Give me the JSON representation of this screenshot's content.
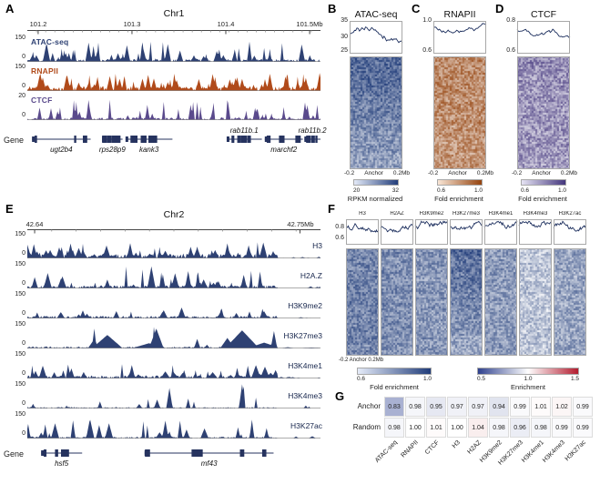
{
  "panelA": {
    "label": "A",
    "title": "Chr1",
    "xticks": [
      "101.2",
      "101.3",
      "101.4",
      "101.5Mb"
    ],
    "ruler": {
      "majors": [
        0.037,
        0.357,
        0.677,
        0.963
      ],
      "minors": 32
    },
    "gene_label": "Gene",
    "tracks": [
      {
        "name": "ATAC-seq",
        "ymax": "150",
        "ymin": "0",
        "color": "#2e4173",
        "seed": 11,
        "peaks": 80,
        "gain": 0.85,
        "noise": 0.12,
        "wide": 1
      },
      {
        "name": "RNAPII",
        "ymax": "150",
        "ymin": "0",
        "color": "#b04a1a",
        "seed": 12,
        "peaks": 100,
        "gain": 0.75,
        "noise": 0.2,
        "wide": 1
      },
      {
        "name": "CTCF",
        "ymax": "20",
        "ymin": "0",
        "color": "#5a4a8c",
        "seed": 13,
        "peaks": 60,
        "gain": 0.85,
        "noise": 0.1,
        "wide": 0
      }
    ],
    "genes": [
      {
        "name": "ugt2b4",
        "x": 0.016,
        "w": 0.2,
        "side": "below",
        "seed": 1
      },
      {
        "name": "rps28p9",
        "x": 0.255,
        "w": 0.07,
        "side": "below",
        "seed": 2
      },
      {
        "name": "kank3",
        "x": 0.335,
        "w": 0.16,
        "side": "below",
        "seed": 3
      },
      {
        "name": "rab11b.1",
        "x": 0.68,
        "w": 0.12,
        "side": "above",
        "seed": 4
      },
      {
        "name": "marchf2",
        "x": 0.81,
        "w": 0.13,
        "side": "below",
        "seed": 5
      },
      {
        "name": "rab11b.2",
        "x": 0.945,
        "w": 0.055,
        "side": "above",
        "seed": 6
      }
    ]
  },
  "panelB": {
    "label": "B",
    "title": "ATAC-seq",
    "yticks": [
      "35",
      "30",
      "25"
    ],
    "xlabels": [
      "-0.2",
      "Anchor",
      "0.2Mb"
    ],
    "meta": {
      "seed": 41,
      "start": 0.55,
      "step": 0.18,
      "lo": 0.25,
      "hi": 0.9,
      "color": "#1d2f5e"
    },
    "heat": {
      "seed": 52,
      "meanTop": 0.8,
      "meanBottom": 0.45,
      "var": 0.45,
      "color": "#1e3a78"
    },
    "colorbar": {
      "label": "RPKM normalized",
      "ticks": [
        "20",
        "32"
      ],
      "stops": [
        "#e8eefb",
        "#1e3a78"
      ]
    }
  },
  "panelC": {
    "label": "C",
    "title": "RNAPII",
    "yticks": [
      "1.0",
      "0.6"
    ],
    "xlabels": [
      "-0.2",
      "Anchor",
      "0.2Mb"
    ],
    "meta": {
      "seed": 43,
      "start": 0.78,
      "step": 0.1,
      "lo": 0.55,
      "hi": 0.92,
      "color": "#1d2f5e"
    },
    "heat": {
      "seed": 53,
      "meanTop": 0.62,
      "meanBottom": 0.55,
      "var": 0.5,
      "color": "#93400a"
    },
    "colorbar": {
      "label": "Fold enrichment",
      "ticks": [
        "0.6",
        "1.0"
      ],
      "stops": [
        "#fbe9da",
        "#93400a"
      ]
    }
  },
  "panelD": {
    "label": "D",
    "title": "CTCF",
    "yticks": [
      "0.8",
      "0.6"
    ],
    "xlabels": [
      "-0.2",
      "Anchor",
      "0.2Mb"
    ],
    "meta": {
      "seed": 47,
      "start": 0.72,
      "step": 0.12,
      "lo": 0.5,
      "hi": 0.9,
      "color": "#1d2f5e"
    },
    "heat": {
      "seed": 54,
      "meanTop": 0.55,
      "meanBottom": 0.5,
      "var": 0.55,
      "color": "#41337b"
    },
    "colorbar": {
      "label": "Fold enrichment",
      "ticks": [
        "0.6",
        "1.0"
      ],
      "stops": [
        "#e9e7f6",
        "#41337b"
      ]
    }
  },
  "panelE": {
    "label": "E",
    "title": "Chr2",
    "xticks": [
      "42.64",
      "42.75Mb"
    ],
    "ruler": {
      "majors": [
        0.025,
        0.93
      ],
      "minors": 12
    },
    "gene_label": "Gene",
    "tracks": [
      {
        "name": "H3",
        "ymax": "150",
        "ymin": "0",
        "color": "#2e4173",
        "seed": 111,
        "peaks": 90,
        "gain": 0.65,
        "noise": 0.18,
        "wide": 2,
        "cut": 0.85
      },
      {
        "name": "H2A.Z",
        "ymax": "150",
        "ymin": "0",
        "color": "#2e4173",
        "seed": 112,
        "peaks": 50,
        "gain": 0.9,
        "noise": 0.12,
        "wide": 2,
        "cut": 0.85
      },
      {
        "name": "H3K9me2",
        "ymax": "150",
        "ymin": "0",
        "color": "#2e4173",
        "seed": 113,
        "peaks": 30,
        "gain": 0.45,
        "noise": 0.1,
        "wide": 2,
        "cut": 0.85
      },
      {
        "name": "H3K27me3",
        "ymax": "150",
        "ymin": "0",
        "color": "#2e4173",
        "seed": 114,
        "peaks": 16,
        "gain": 0.95,
        "noise": 0.08,
        "wide": 20,
        "cut": 0.85
      },
      {
        "name": "H3K4me1",
        "ymax": "150",
        "ymin": "0",
        "color": "#2e4173",
        "seed": 115,
        "peaks": 60,
        "gain": 0.6,
        "noise": 0.12,
        "wide": 3,
        "cut": 0.85
      },
      {
        "name": "H3K4me3",
        "ymax": "150",
        "ymin": "0",
        "color": "#2e4173",
        "seed": 116,
        "peaks": 14,
        "gain": 1.0,
        "noise": 0.06,
        "wide": 1,
        "cut": 0.85
      },
      {
        "name": "H3K27ac",
        "ymax": "150",
        "ymin": "0",
        "color": "#2e4173",
        "seed": 117,
        "peaks": 30,
        "gain": 0.8,
        "noise": 0.08,
        "wide": 2,
        "cut": 0.85
      }
    ],
    "genes": [
      {
        "name": "hsf5",
        "x": 0.047,
        "w": 0.14,
        "side": "below",
        "seed": 8
      },
      {
        "name": "mf43",
        "x": 0.4,
        "w": 0.44,
        "side": "below",
        "seed": 9
      }
    ]
  },
  "panelF": {
    "label": "F",
    "yticks": [
      "0.8",
      "0.6"
    ],
    "xlabel": "-0.2 Anchor 0.2Mb",
    "heat_color": "#1e3a78",
    "line_color": "#1d2f5e",
    "columns": [
      {
        "name": "H3",
        "seedM": 201,
        "seedH": 301,
        "mean": 0.62
      },
      {
        "name": "H2AZ",
        "seedM": 202,
        "seedH": 302,
        "mean": 0.58
      },
      {
        "name": "H3K9me2",
        "seedM": 203,
        "seedH": 303,
        "mean": 0.52
      },
      {
        "name": "H3K27me3",
        "seedM": 204,
        "seedH": 304,
        "meanTop": 0.78,
        "meanBottom": 0.42
      },
      {
        "name": "H3K4me1",
        "seedM": 205,
        "seedH": 305,
        "mean": 0.5
      },
      {
        "name": "H3K4me3",
        "seedM": 206,
        "seedH": 306,
        "mean": 0.3
      },
      {
        "name": "H3K27ac",
        "seedM": 207,
        "seedH": 307,
        "mean": 0.45
      }
    ],
    "colorbar1": {
      "label": "Fold enrichment",
      "ticks": [
        "0.6",
        "1.0"
      ],
      "stops": [
        "#e8eefb",
        "#1e3a78"
      ]
    },
    "colorbar2": {
      "label": "Enrichment",
      "ticks": [
        "0.5",
        "1.0",
        "1.5"
      ],
      "stops": [
        "#2c3e8c",
        "#ffffff",
        "#b2182b"
      ]
    }
  },
  "panelG": {
    "label": "G",
    "rows": [
      "Anchor",
      "Random"
    ],
    "columns": [
      "ATAC-seq",
      "RNAPII",
      "CTCF",
      "H3",
      "H2AZ",
      "H3K9me2",
      "H3K27me3",
      "H3K4me1",
      "H3K4me3",
      "H3K27ac"
    ],
    "values": [
      [
        "0.83",
        "0.98",
        "0.95",
        "0.97",
        "0.97",
        "0.94",
        "0.99",
        "1.01",
        "1.02",
        "0.99"
      ],
      [
        "0.98",
        "1.00",
        "1.01",
        "1.00",
        "1.04",
        "0.98",
        "0.96",
        "0.98",
        "0.99",
        "0.99"
      ]
    ]
  },
  "chart_data": [
    {
      "id": "A",
      "type": "area",
      "title": "Chr1",
      "x_axis": {
        "unit": "Mb",
        "ticks": [
          101.2,
          101.3,
          101.4,
          101.5
        ]
      },
      "tracks": [
        {
          "name": "ATAC-seq",
          "ylim": [
            0,
            150
          ]
        },
        {
          "name": "RNAPII",
          "ylim": [
            0,
            150
          ]
        },
        {
          "name": "CTCF",
          "ylim": [
            0,
            20
          ]
        }
      ],
      "genes": [
        "ugt2b4",
        "rps28p9",
        "kank3",
        "rab11b.1",
        "marchf2",
        "rab11b.2"
      ],
      "note": "genome-browser coverage tracks; dense unlabeled peak signal"
    },
    {
      "id": "B",
      "type": "line",
      "title": "ATAC-seq",
      "ylim": [
        25,
        35
      ],
      "yticks": [
        25,
        30,
        35
      ],
      "x_ticks": [
        "-0.2",
        "Anchor",
        "0.2Mb"
      ],
      "heatmap_colorbar": {
        "label": "RPKM normalized",
        "range": [
          20,
          32
        ]
      }
    },
    {
      "id": "C",
      "type": "line",
      "title": "RNAPII",
      "ylim": [
        0.6,
        1.0
      ],
      "x_ticks": [
        "-0.2",
        "Anchor",
        "0.2Mb"
      ],
      "heatmap_colorbar": {
        "label": "Fold enrichment",
        "range": [
          0.6,
          1.0
        ]
      }
    },
    {
      "id": "D",
      "type": "line",
      "title": "CTCF",
      "ylim": [
        0.6,
        0.8
      ],
      "x_ticks": [
        "-0.2",
        "Anchor",
        "0.2Mb"
      ],
      "heatmap_colorbar": {
        "label": "Fold enrichment",
        "range": [
          0.6,
          1.0
        ]
      }
    },
    {
      "id": "E",
      "type": "area",
      "title": "Chr2",
      "x_axis": {
        "unit": "Mb",
        "ticks": [
          42.64,
          42.75
        ]
      },
      "tracks": [
        {
          "name": "H3",
          "ylim": [
            0,
            150
          ]
        },
        {
          "name": "H2A.Z",
          "ylim": [
            0,
            150
          ]
        },
        {
          "name": "H3K9me2",
          "ylim": [
            0,
            150
          ]
        },
        {
          "name": "H3K27me3",
          "ylim": [
            0,
            150
          ]
        },
        {
          "name": "H3K4me1",
          "ylim": [
            0,
            150
          ]
        },
        {
          "name": "H3K4me3",
          "ylim": [
            0,
            150
          ]
        },
        {
          "name": "H3K27ac",
          "ylim": [
            0,
            150
          ]
        }
      ],
      "genes": [
        "hsf5",
        "mf43"
      ]
    },
    {
      "id": "F",
      "type": "line",
      "columns": [
        "H3",
        "H2AZ",
        "H3K9me2",
        "H3K27me3",
        "H3K4me1",
        "H3K4me3",
        "H3K27ac"
      ],
      "ylim": [
        0.6,
        1.0
      ],
      "yticks": [
        0.6,
        0.8
      ],
      "x_ticks": [
        "-0.2",
        "Anchor",
        "0.2Mb"
      ],
      "colorbars": [
        {
          "label": "Fold enrichment",
          "range": [
            0.6,
            1.0
          ]
        },
        {
          "label": "Enrichment",
          "range": [
            0.5,
            1.5
          ]
        }
      ]
    },
    {
      "id": "G",
      "type": "heatmap",
      "rows": [
        "Anchor",
        "Random"
      ],
      "columns": [
        "ATAC-seq",
        "RNAPII",
        "CTCF",
        "H3",
        "H2AZ",
        "H3K9me2",
        "H3K27me3",
        "H3K4me1",
        "H3K4me3",
        "H3K27ac"
      ],
      "values": [
        [
          0.83,
          0.98,
          0.95,
          0.97,
          0.97,
          0.94,
          0.99,
          1.01,
          1.02,
          0.99
        ],
        [
          0.98,
          1.0,
          1.01,
          1.0,
          1.04,
          0.98,
          0.96,
          0.98,
          0.99,
          0.99
        ]
      ],
      "colorbar": {
        "range": [
          0.5,
          1.5
        ],
        "mid": 1.0
      }
    }
  ]
}
